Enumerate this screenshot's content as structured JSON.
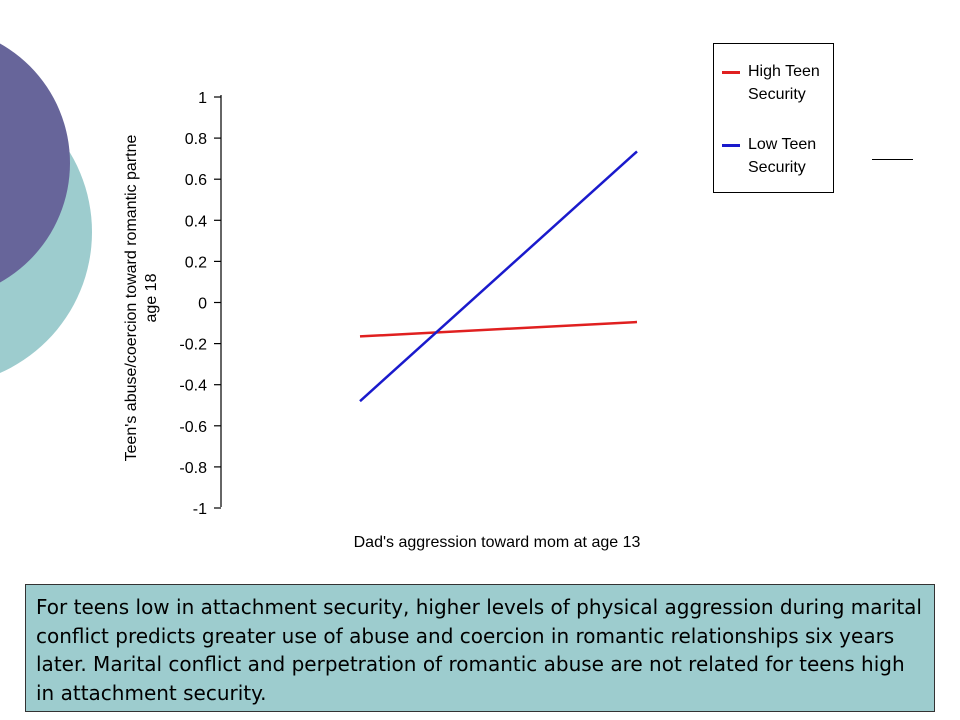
{
  "colors": {
    "deco_circle_dark": "#67659a",
    "deco_circle_light": "#9dccce",
    "caption_background": "#9dccce"
  },
  "chart_data": {
    "type": "line",
    "title": "",
    "xlabel": "Dad's aggression toward mom at age 13",
    "ylabel_lines": [
      "Teen's abuse/coercion toward romantic partne",
      "age 18"
    ],
    "ylim": [
      -1,
      1
    ],
    "yticks": [
      "1",
      "0.8",
      "0.6",
      "0.4",
      "0.2",
      "0",
      "-0.2",
      "-0.4",
      "-0.6",
      "-0.8",
      "-1"
    ],
    "legend_position": "top-right",
    "series": [
      {
        "name": "High Teen Security",
        "label_lines": [
          "High Teen",
          "Security"
        ],
        "color": "#e02020",
        "y_start": -0.165,
        "y_end": -0.095
      },
      {
        "name": "Low Teen Security",
        "label_lines": [
          "Low Teen",
          "Security"
        ],
        "color": "#1a1acc",
        "y_start": -0.48,
        "y_end": 0.735
      }
    ]
  },
  "caption": {
    "text": "For teens low in attachment security, higher levels of physical aggression during marital conflict predicts greater use of abuse and coercion in romantic relationships six years later. Marital conflict and perpetration of romantic abuse are not related for teens high in attachment security."
  }
}
